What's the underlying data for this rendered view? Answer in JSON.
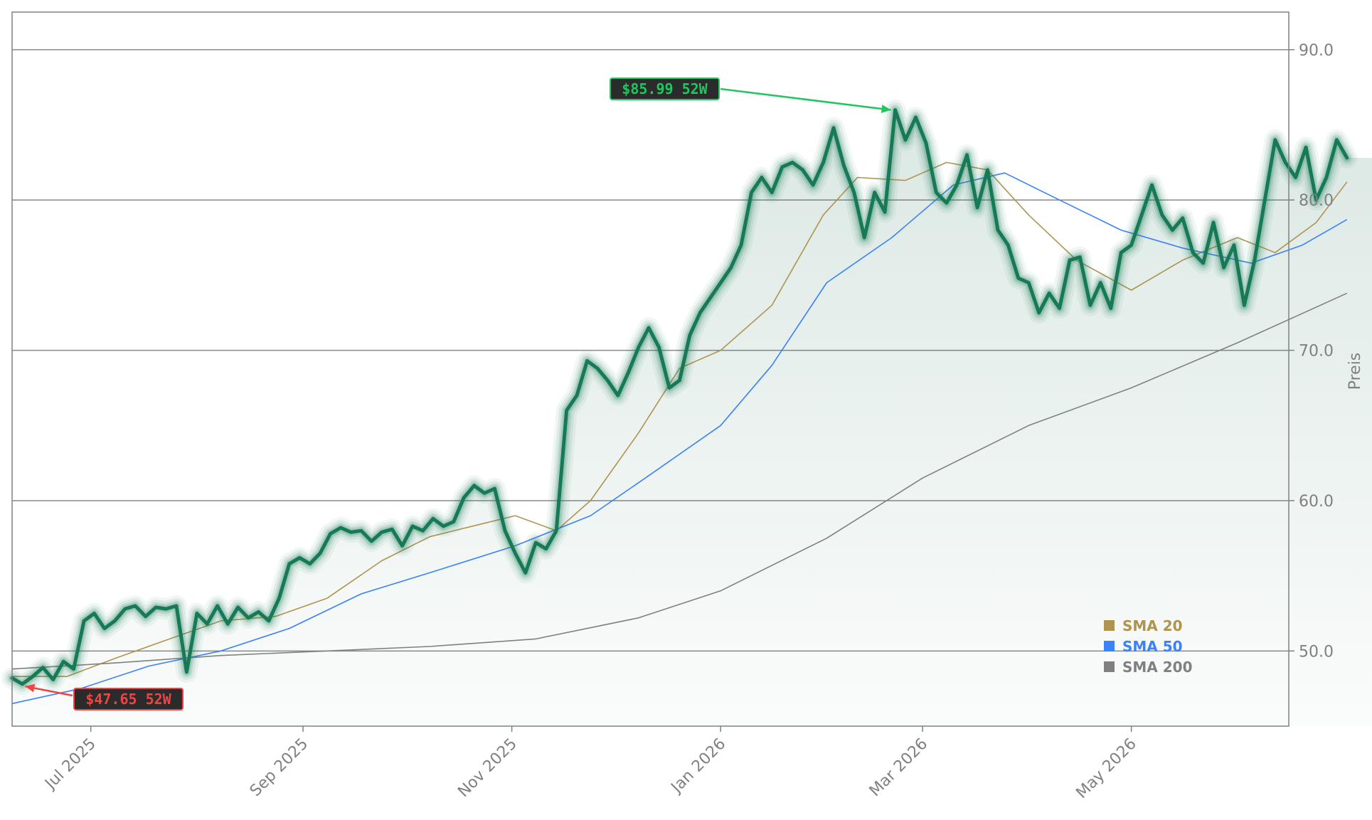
{
  "chart_data": {
    "type": "line",
    "title": "",
    "xlabel": "",
    "ylabel": "Preis",
    "ylim": [
      45,
      92.5
    ],
    "xlim": [
      "2025-06-08",
      "2026-06-16"
    ],
    "y_axis_position": "right",
    "yticks": [
      {
        "value": 50,
        "label": "50.0"
      },
      {
        "value": 60,
        "label": "60.0"
      },
      {
        "value": 70,
        "label": "70.0"
      },
      {
        "value": 80,
        "label": "80.0"
      },
      {
        "value": 90,
        "label": "90.0"
      }
    ],
    "xticks": [
      {
        "date": "2025-07-01",
        "label": "Jul 2025"
      },
      {
        "date": "2025-09-01",
        "label": "Sep 2025"
      },
      {
        "date": "2025-11-01",
        "label": "Nov 2025"
      },
      {
        "date": "2026-01-01",
        "label": "Jan 2026"
      },
      {
        "date": "2026-03-01",
        "label": "Mar 2026"
      },
      {
        "date": "2026-05-01",
        "label": "May 2026"
      }
    ],
    "grid": "horizontal",
    "legend_position": "lower-right",
    "colors": {
      "price": "#157a55",
      "area_fill": "#1e6e50",
      "sma20": "#b09350",
      "sma50": "#3b82f6",
      "sma200": "#808080",
      "high": "#22c55e",
      "low": "#ef4444",
      "grid": "#8a8a8a"
    },
    "series": [
      {
        "name": "Price",
        "role": "price",
        "points": [
          [
            "2025-06-08",
            48.2
          ],
          [
            "2025-06-11",
            47.8
          ],
          [
            "2025-06-14",
            48.3
          ],
          [
            "2025-06-17",
            48.9
          ],
          [
            "2025-06-20",
            48.1
          ],
          [
            "2025-06-23",
            49.3
          ],
          [
            "2025-06-26",
            48.8
          ],
          [
            "2025-06-29",
            52.0
          ],
          [
            "2025-07-02",
            52.5
          ],
          [
            "2025-07-05",
            51.5
          ],
          [
            "2025-07-08",
            52.0
          ],
          [
            "2025-07-11",
            52.8
          ],
          [
            "2025-07-14",
            53.0
          ],
          [
            "2025-07-17",
            52.3
          ],
          [
            "2025-07-20",
            52.9
          ],
          [
            "2025-07-23",
            52.8
          ],
          [
            "2025-07-26",
            53.0
          ],
          [
            "2025-07-29",
            48.6
          ],
          [
            "2025-08-01",
            52.5
          ],
          [
            "2025-08-04",
            51.8
          ],
          [
            "2025-08-07",
            53.0
          ],
          [
            "2025-08-10",
            51.8
          ],
          [
            "2025-08-13",
            52.9
          ],
          [
            "2025-08-16",
            52.2
          ],
          [
            "2025-08-19",
            52.6
          ],
          [
            "2025-08-22",
            52.0
          ],
          [
            "2025-08-25",
            53.5
          ],
          [
            "2025-08-28",
            55.8
          ],
          [
            "2025-08-31",
            56.2
          ],
          [
            "2025-09-03",
            55.8
          ],
          [
            "2025-09-06",
            56.5
          ],
          [
            "2025-09-09",
            57.8
          ],
          [
            "2025-09-12",
            58.2
          ],
          [
            "2025-09-15",
            57.9
          ],
          [
            "2025-09-18",
            58.0
          ],
          [
            "2025-09-21",
            57.3
          ],
          [
            "2025-09-24",
            57.9
          ],
          [
            "2025-09-27",
            58.1
          ],
          [
            "2025-09-30",
            57.0
          ],
          [
            "2025-10-03",
            58.3
          ],
          [
            "2025-10-06",
            58.0
          ],
          [
            "2025-10-09",
            58.8
          ],
          [
            "2025-10-12",
            58.3
          ],
          [
            "2025-10-15",
            58.6
          ],
          [
            "2025-10-18",
            60.2
          ],
          [
            "2025-10-21",
            61.0
          ],
          [
            "2025-10-24",
            60.5
          ],
          [
            "2025-10-27",
            60.8
          ],
          [
            "2025-10-30",
            58.0
          ],
          [
            "2025-11-02",
            56.5
          ],
          [
            "2025-11-05",
            55.2
          ],
          [
            "2025-11-08",
            57.2
          ],
          [
            "2025-11-11",
            56.8
          ],
          [
            "2025-11-14",
            58.0
          ],
          [
            "2025-11-17",
            66.0
          ],
          [
            "2025-11-20",
            67.0
          ],
          [
            "2025-11-23",
            69.3
          ],
          [
            "2025-11-26",
            68.8
          ],
          [
            "2025-11-29",
            68.0
          ],
          [
            "2025-12-02",
            67.0
          ],
          [
            "2025-12-05",
            68.5
          ],
          [
            "2025-12-08",
            70.2
          ],
          [
            "2025-12-11",
            71.5
          ],
          [
            "2025-12-14",
            70.2
          ],
          [
            "2025-12-17",
            67.5
          ],
          [
            "2025-12-20",
            68.0
          ],
          [
            "2025-12-23",
            71.0
          ],
          [
            "2025-12-26",
            72.5
          ],
          [
            "2025-12-29",
            73.5
          ],
          [
            "2026-01-01",
            74.5
          ],
          [
            "2026-01-04",
            75.5
          ],
          [
            "2026-01-07",
            77.0
          ],
          [
            "2026-01-10",
            80.5
          ],
          [
            "2026-01-13",
            81.5
          ],
          [
            "2026-01-16",
            80.5
          ],
          [
            "2026-01-19",
            82.2
          ],
          [
            "2026-01-22",
            82.5
          ],
          [
            "2026-01-25",
            82.0
          ],
          [
            "2026-01-28",
            81.0
          ],
          [
            "2026-01-31",
            82.5
          ],
          [
            "2026-02-03",
            84.8
          ],
          [
            "2026-02-06",
            82.3
          ],
          [
            "2026-02-09",
            80.5
          ],
          [
            "2026-02-12",
            77.5
          ],
          [
            "2026-02-15",
            80.5
          ],
          [
            "2026-02-18",
            79.2
          ],
          [
            "2026-02-21",
            85.99
          ],
          [
            "2026-02-24",
            84.0
          ],
          [
            "2026-02-27",
            85.5
          ],
          [
            "2026-03-02",
            83.8
          ],
          [
            "2026-03-05",
            80.5
          ],
          [
            "2026-03-08",
            79.8
          ],
          [
            "2026-03-11",
            81.0
          ],
          [
            "2026-03-14",
            83.0
          ],
          [
            "2026-03-17",
            79.5
          ],
          [
            "2026-03-20",
            82.0
          ],
          [
            "2026-03-23",
            78.0
          ],
          [
            "2026-03-26",
            77.0
          ],
          [
            "2026-03-29",
            74.8
          ],
          [
            "2026-04-01",
            74.5
          ],
          [
            "2026-04-04",
            72.5
          ],
          [
            "2026-04-07",
            73.8
          ],
          [
            "2026-04-10",
            72.8
          ],
          [
            "2026-04-13",
            76.0
          ],
          [
            "2026-04-16",
            76.2
          ],
          [
            "2026-04-19",
            73.0
          ],
          [
            "2026-04-22",
            74.5
          ],
          [
            "2026-04-25",
            72.8
          ],
          [
            "2026-04-28",
            76.5
          ],
          [
            "2026-05-01",
            77.0
          ],
          [
            "2026-05-04",
            79.0
          ],
          [
            "2026-05-07",
            81.0
          ],
          [
            "2026-05-10",
            79.0
          ],
          [
            "2026-05-13",
            78.0
          ],
          [
            "2026-05-16",
            78.8
          ],
          [
            "2026-05-19",
            76.5
          ],
          [
            "2026-05-22",
            75.8
          ],
          [
            "2026-05-25",
            78.5
          ],
          [
            "2026-05-28",
            75.5
          ],
          [
            "2026-05-31",
            77.0
          ],
          [
            "2026-06-03",
            73.0
          ],
          [
            "2026-06-06",
            76.0
          ],
          [
            "2026-06-09",
            80.0
          ],
          [
            "2026-06-12",
            84.0
          ],
          [
            "2026-06-15",
            82.5
          ],
          [
            "2026-06-18",
            81.5
          ],
          [
            "2026-06-21",
            83.5
          ],
          [
            "2026-06-24",
            80.0
          ],
          [
            "2026-06-27",
            81.5
          ],
          [
            "2026-06-30",
            84.0
          ],
          [
            "2026-07-03",
            82.8
          ]
        ]
      },
      {
        "name": "SMA 20",
        "role": "sma20",
        "points": [
          [
            "2025-06-08",
            48.3
          ],
          [
            "2025-06-24",
            48.3
          ],
          [
            "2025-07-08",
            49.5
          ],
          [
            "2025-07-24",
            50.8
          ],
          [
            "2025-08-08",
            52.0
          ],
          [
            "2025-08-24",
            52.3
          ],
          [
            "2025-09-08",
            53.5
          ],
          [
            "2025-09-24",
            56.0
          ],
          [
            "2025-10-08",
            57.6
          ],
          [
            "2025-10-24",
            58.5
          ],
          [
            "2025-11-02",
            59.0
          ],
          [
            "2025-11-14",
            58.0
          ],
          [
            "2025-11-24",
            60.0
          ],
          [
            "2025-12-08",
            64.5
          ],
          [
            "2025-12-20",
            68.8
          ],
          [
            "2026-01-01",
            70.0
          ],
          [
            "2026-01-16",
            73.0
          ],
          [
            "2026-01-31",
            79.0
          ],
          [
            "2026-02-10",
            81.5
          ],
          [
            "2026-02-24",
            81.3
          ],
          [
            "2026-03-08",
            82.5
          ],
          [
            "2026-03-20",
            82.0
          ],
          [
            "2026-04-01",
            79.0
          ],
          [
            "2026-04-15",
            76.0
          ],
          [
            "2026-05-01",
            74.0
          ],
          [
            "2026-05-16",
            76.0
          ],
          [
            "2026-06-01",
            77.5
          ],
          [
            "2026-06-12",
            76.5
          ],
          [
            "2026-06-24",
            78.5
          ],
          [
            "2026-07-03",
            81.2
          ]
        ]
      },
      {
        "name": "SMA 50",
        "role": "sma50",
        "points": [
          [
            "2025-06-08",
            46.5
          ],
          [
            "2025-06-28",
            47.5
          ],
          [
            "2025-07-18",
            49.0
          ],
          [
            "2025-08-08",
            50.0
          ],
          [
            "2025-08-28",
            51.5
          ],
          [
            "2025-09-18",
            53.8
          ],
          [
            "2025-10-08",
            55.2
          ],
          [
            "2025-11-02",
            57.0
          ],
          [
            "2025-11-24",
            59.0
          ],
          [
            "2025-12-10",
            61.5
          ],
          [
            "2026-01-01",
            65.0
          ],
          [
            "2026-01-16",
            69.0
          ],
          [
            "2026-02-01",
            74.5
          ],
          [
            "2026-02-20",
            77.5
          ],
          [
            "2026-03-10",
            81.0
          ],
          [
            "2026-03-25",
            81.8
          ],
          [
            "2026-04-10",
            80.0
          ],
          [
            "2026-04-28",
            78.0
          ],
          [
            "2026-05-16",
            76.8
          ],
          [
            "2026-06-05",
            75.8
          ],
          [
            "2026-06-20",
            77.0
          ],
          [
            "2026-07-03",
            78.7
          ]
        ]
      },
      {
        "name": "SMA 200",
        "role": "sma200",
        "points": [
          [
            "2025-06-08",
            48.8
          ],
          [
            "2025-07-08",
            49.2
          ],
          [
            "2025-08-08",
            49.7
          ],
          [
            "2025-09-08",
            50.0
          ],
          [
            "2025-10-08",
            50.3
          ],
          [
            "2025-11-08",
            50.8
          ],
          [
            "2025-12-08",
            52.2
          ],
          [
            "2026-01-01",
            54.0
          ],
          [
            "2026-02-01",
            57.5
          ],
          [
            "2026-03-01",
            61.5
          ],
          [
            "2026-04-01",
            65.0
          ],
          [
            "2026-05-01",
            67.5
          ],
          [
            "2026-06-01",
            70.5
          ],
          [
            "2026-07-03",
            73.8
          ]
        ]
      }
    ],
    "annotations": [
      {
        "kind": "high",
        "text": "$85.99 52W",
        "point_date": "2026-02-21",
        "point_value": 85.99
      },
      {
        "kind": "low",
        "text": "$47.65 52W",
        "point_date": "2025-06-11",
        "point_value": 47.65
      }
    ],
    "legend": [
      {
        "label": "SMA 20",
        "role": "sma20"
      },
      {
        "label": "SMA 50",
        "role": "sma50"
      },
      {
        "label": "SMA 200",
        "role": "sma200"
      }
    ]
  }
}
